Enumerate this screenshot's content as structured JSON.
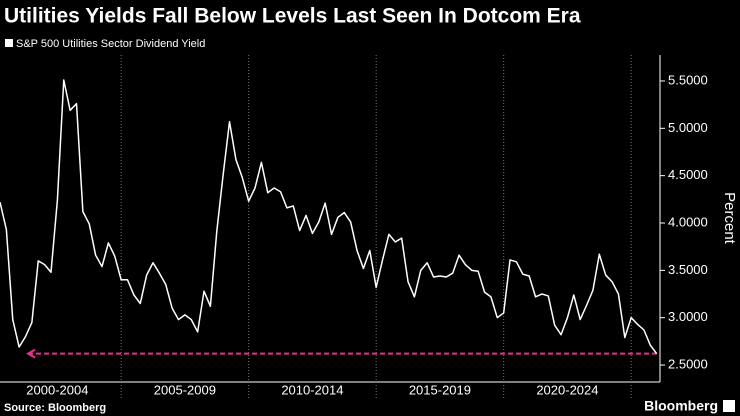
{
  "chart_data": {
    "type": "line",
    "title": "Utilities Yields Fall Below Levels Last Seen In Dotcom Era",
    "y_label": "Percent",
    "source": "Source: Bloomberg",
    "brand": "Bloomberg",
    "x": [
      2000.25,
      2000.5,
      2000.75,
      2001,
      2001.25,
      2001.5,
      2001.75,
      2002,
      2002.25,
      2002.5,
      2002.75,
      2003,
      2003.25,
      2003.5,
      2003.75,
      2004,
      2004.25,
      2004.5,
      2004.75,
      2005,
      2005.25,
      2005.5,
      2005.75,
      2006,
      2006.25,
      2006.5,
      2006.75,
      2007,
      2007.25,
      2007.5,
      2007.75,
      2008,
      2008.25,
      2008.5,
      2008.75,
      2009,
      2009.25,
      2009.5,
      2009.75,
      2010,
      2010.25,
      2010.5,
      2010.75,
      2011,
      2011.25,
      2011.5,
      2011.75,
      2012,
      2012.25,
      2012.5,
      2012.75,
      2013,
      2013.25,
      2013.5,
      2013.75,
      2014,
      2014.25,
      2014.5,
      2014.75,
      2015,
      2015.25,
      2015.5,
      2015.75,
      2016,
      2016.25,
      2016.5,
      2016.75,
      2017,
      2017.25,
      2017.5,
      2017.75,
      2018,
      2018.25,
      2018.5,
      2018.75,
      2019,
      2019.25,
      2019.5,
      2019.75,
      2020,
      2020.25,
      2020.5,
      2020.75,
      2021,
      2021.25,
      2021.5,
      2021.75,
      2022,
      2022.25,
      2022.5,
      2022.75,
      2023,
      2023.25,
      2023.5,
      2023.75,
      2024,
      2024.25,
      2024.5,
      2024.75,
      2025,
      2025.25,
      2025.5,
      2025.75,
      2026
    ],
    "series": [
      {
        "name": "S&P 500 Utilities Sector Dividend Yield",
        "color": "#ffffff",
        "values": [
          4.22,
          3.93,
          2.98,
          2.69,
          2.8,
          2.95,
          3.6,
          3.56,
          3.48,
          4.24,
          5.51,
          5.19,
          5.26,
          4.12,
          3.99,
          3.66,
          3.54,
          3.79,
          3.65,
          3.4,
          3.4,
          3.24,
          3.15,
          3.45,
          3.58,
          3.47,
          3.35,
          3.1,
          2.98,
          3.03,
          2.98,
          2.85,
          3.28,
          3.12,
          3.91,
          4.51,
          5.07,
          4.67,
          4.48,
          4.23,
          4.37,
          4.64,
          4.32,
          4.37,
          4.33,
          4.16,
          4.18,
          3.92,
          4.08,
          3.89,
          4.01,
          4.21,
          3.88,
          4.06,
          4.11,
          4.01,
          3.71,
          3.52,
          3.71,
          3.32,
          3.61,
          3.88,
          3.8,
          3.84,
          3.38,
          3.22,
          3.5,
          3.58,
          3.43,
          3.44,
          3.43,
          3.47,
          3.66,
          3.56,
          3.5,
          3.49,
          3.27,
          3.22,
          3.0,
          3.05,
          3.61,
          3.59,
          3.46,
          3.44,
          3.22,
          3.25,
          3.23,
          2.92,
          2.82,
          3.0,
          3.24,
          2.98,
          3.13,
          3.29,
          3.67,
          3.45,
          3.38,
          3.25,
          2.79,
          3.0,
          2.93,
          2.87,
          2.71,
          2.62
        ]
      }
    ],
    "xlim": [
      2000.25,
      2026.13
    ],
    "xticks": [
      {
        "value": 2002.5,
        "label": "2000-2004"
      },
      {
        "value": 2007.5,
        "label": "2005-2009"
      },
      {
        "value": 2012.5,
        "label": "2010-2014"
      },
      {
        "value": 2017.5,
        "label": "2015-2019"
      },
      {
        "value": 2022.5,
        "label": "2020-2024"
      }
    ],
    "xgrid": [
      2005,
      2010,
      2015,
      2020,
      2025
    ],
    "ylim": [
      2.4,
      5.75
    ],
    "yticks": [
      {
        "value": 2.5,
        "label": "2.5000"
      },
      {
        "value": 3,
        "label": "3.0000"
      },
      {
        "value": 3.5,
        "label": "3.5000"
      },
      {
        "value": 4,
        "label": "4.0000"
      },
      {
        "value": 4.5,
        "label": "4.5000"
      },
      {
        "value": 5,
        "label": "5.0000"
      },
      {
        "value": 5.5,
        "label": "5.5000"
      }
    ],
    "reference_line": {
      "y": 2.62,
      "x": [
        2001.35,
        2026
      ],
      "color": "#e8308c"
    }
  }
}
